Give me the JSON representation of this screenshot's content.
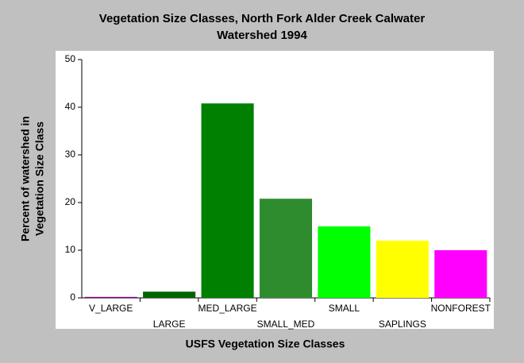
{
  "chart_data": {
    "type": "bar",
    "title": [
      "Vegetation Size Classes, North Fork Alder Creek Calwater",
      "Watershed 1994"
    ],
    "x_label": "USFS Vegetation Size Classes",
    "y_label": [
      "Percent of watershed in",
      "Vegetation Size Class"
    ],
    "categories": [
      "V_LARGE",
      "LARGE",
      "MED_LARGE",
      "SMALL_MED",
      "SMALL",
      "SAPLINGS",
      "NONFOREST"
    ],
    "values": [
      0.2,
      1.3,
      40.8,
      20.8,
      15,
      12,
      10
    ],
    "colors": [
      "#800080",
      "#006400",
      "#008000",
      "#2e8b2e",
      "#00ff00",
      "#ffff00",
      "#ff00ff"
    ],
    "ylim": [
      0,
      50
    ],
    "yticks": [
      0,
      10,
      20,
      30,
      40,
      50
    ],
    "grid": false
  }
}
